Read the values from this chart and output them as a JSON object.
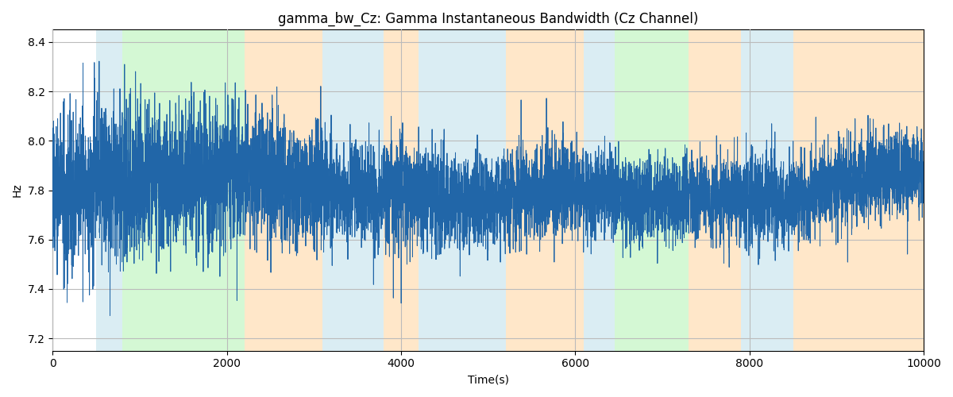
{
  "title": "gamma_bw_Cz: Gamma Instantaneous Bandwidth (Cz Channel)",
  "xlabel": "Time(s)",
  "ylabel": "Hz",
  "xlim": [
    0,
    10000
  ],
  "ylim": [
    7.15,
    8.45
  ],
  "yticks": [
    7.2,
    7.4,
    7.6,
    7.8,
    8.0,
    8.2,
    8.4
  ],
  "xticks": [
    0,
    2000,
    4000,
    6000,
    8000,
    10000
  ],
  "line_color": "#2166a8",
  "line_width": 0.7,
  "grid_color": "#bbbbbb",
  "background_color": "#ffffff",
  "bands": [
    {
      "start": 500,
      "end": 800,
      "color": "#add8e6",
      "alpha": 0.45
    },
    {
      "start": 800,
      "end": 2200,
      "color": "#90ee90",
      "alpha": 0.38
    },
    {
      "start": 2200,
      "end": 3100,
      "color": "#ffd59e",
      "alpha": 0.55
    },
    {
      "start": 3100,
      "end": 3800,
      "color": "#add8e6",
      "alpha": 0.45
    },
    {
      "start": 3800,
      "end": 4200,
      "color": "#ffd59e",
      "alpha": 0.55
    },
    {
      "start": 4200,
      "end": 5200,
      "color": "#add8e6",
      "alpha": 0.45
    },
    {
      "start": 5200,
      "end": 6100,
      "color": "#ffd59e",
      "alpha": 0.55
    },
    {
      "start": 6100,
      "end": 6450,
      "color": "#add8e6",
      "alpha": 0.45
    },
    {
      "start": 6450,
      "end": 7300,
      "color": "#90ee90",
      "alpha": 0.38
    },
    {
      "start": 7300,
      "end": 7900,
      "color": "#ffd59e",
      "alpha": 0.55
    },
    {
      "start": 7900,
      "end": 8500,
      "color": "#add8e6",
      "alpha": 0.45
    },
    {
      "start": 8500,
      "end": 10000,
      "color": "#ffd59e",
      "alpha": 0.55
    }
  ],
  "seed": 2024,
  "n_points": 8000,
  "signal_mean": 7.8,
  "figsize": [
    12,
    5
  ],
  "dpi": 100
}
